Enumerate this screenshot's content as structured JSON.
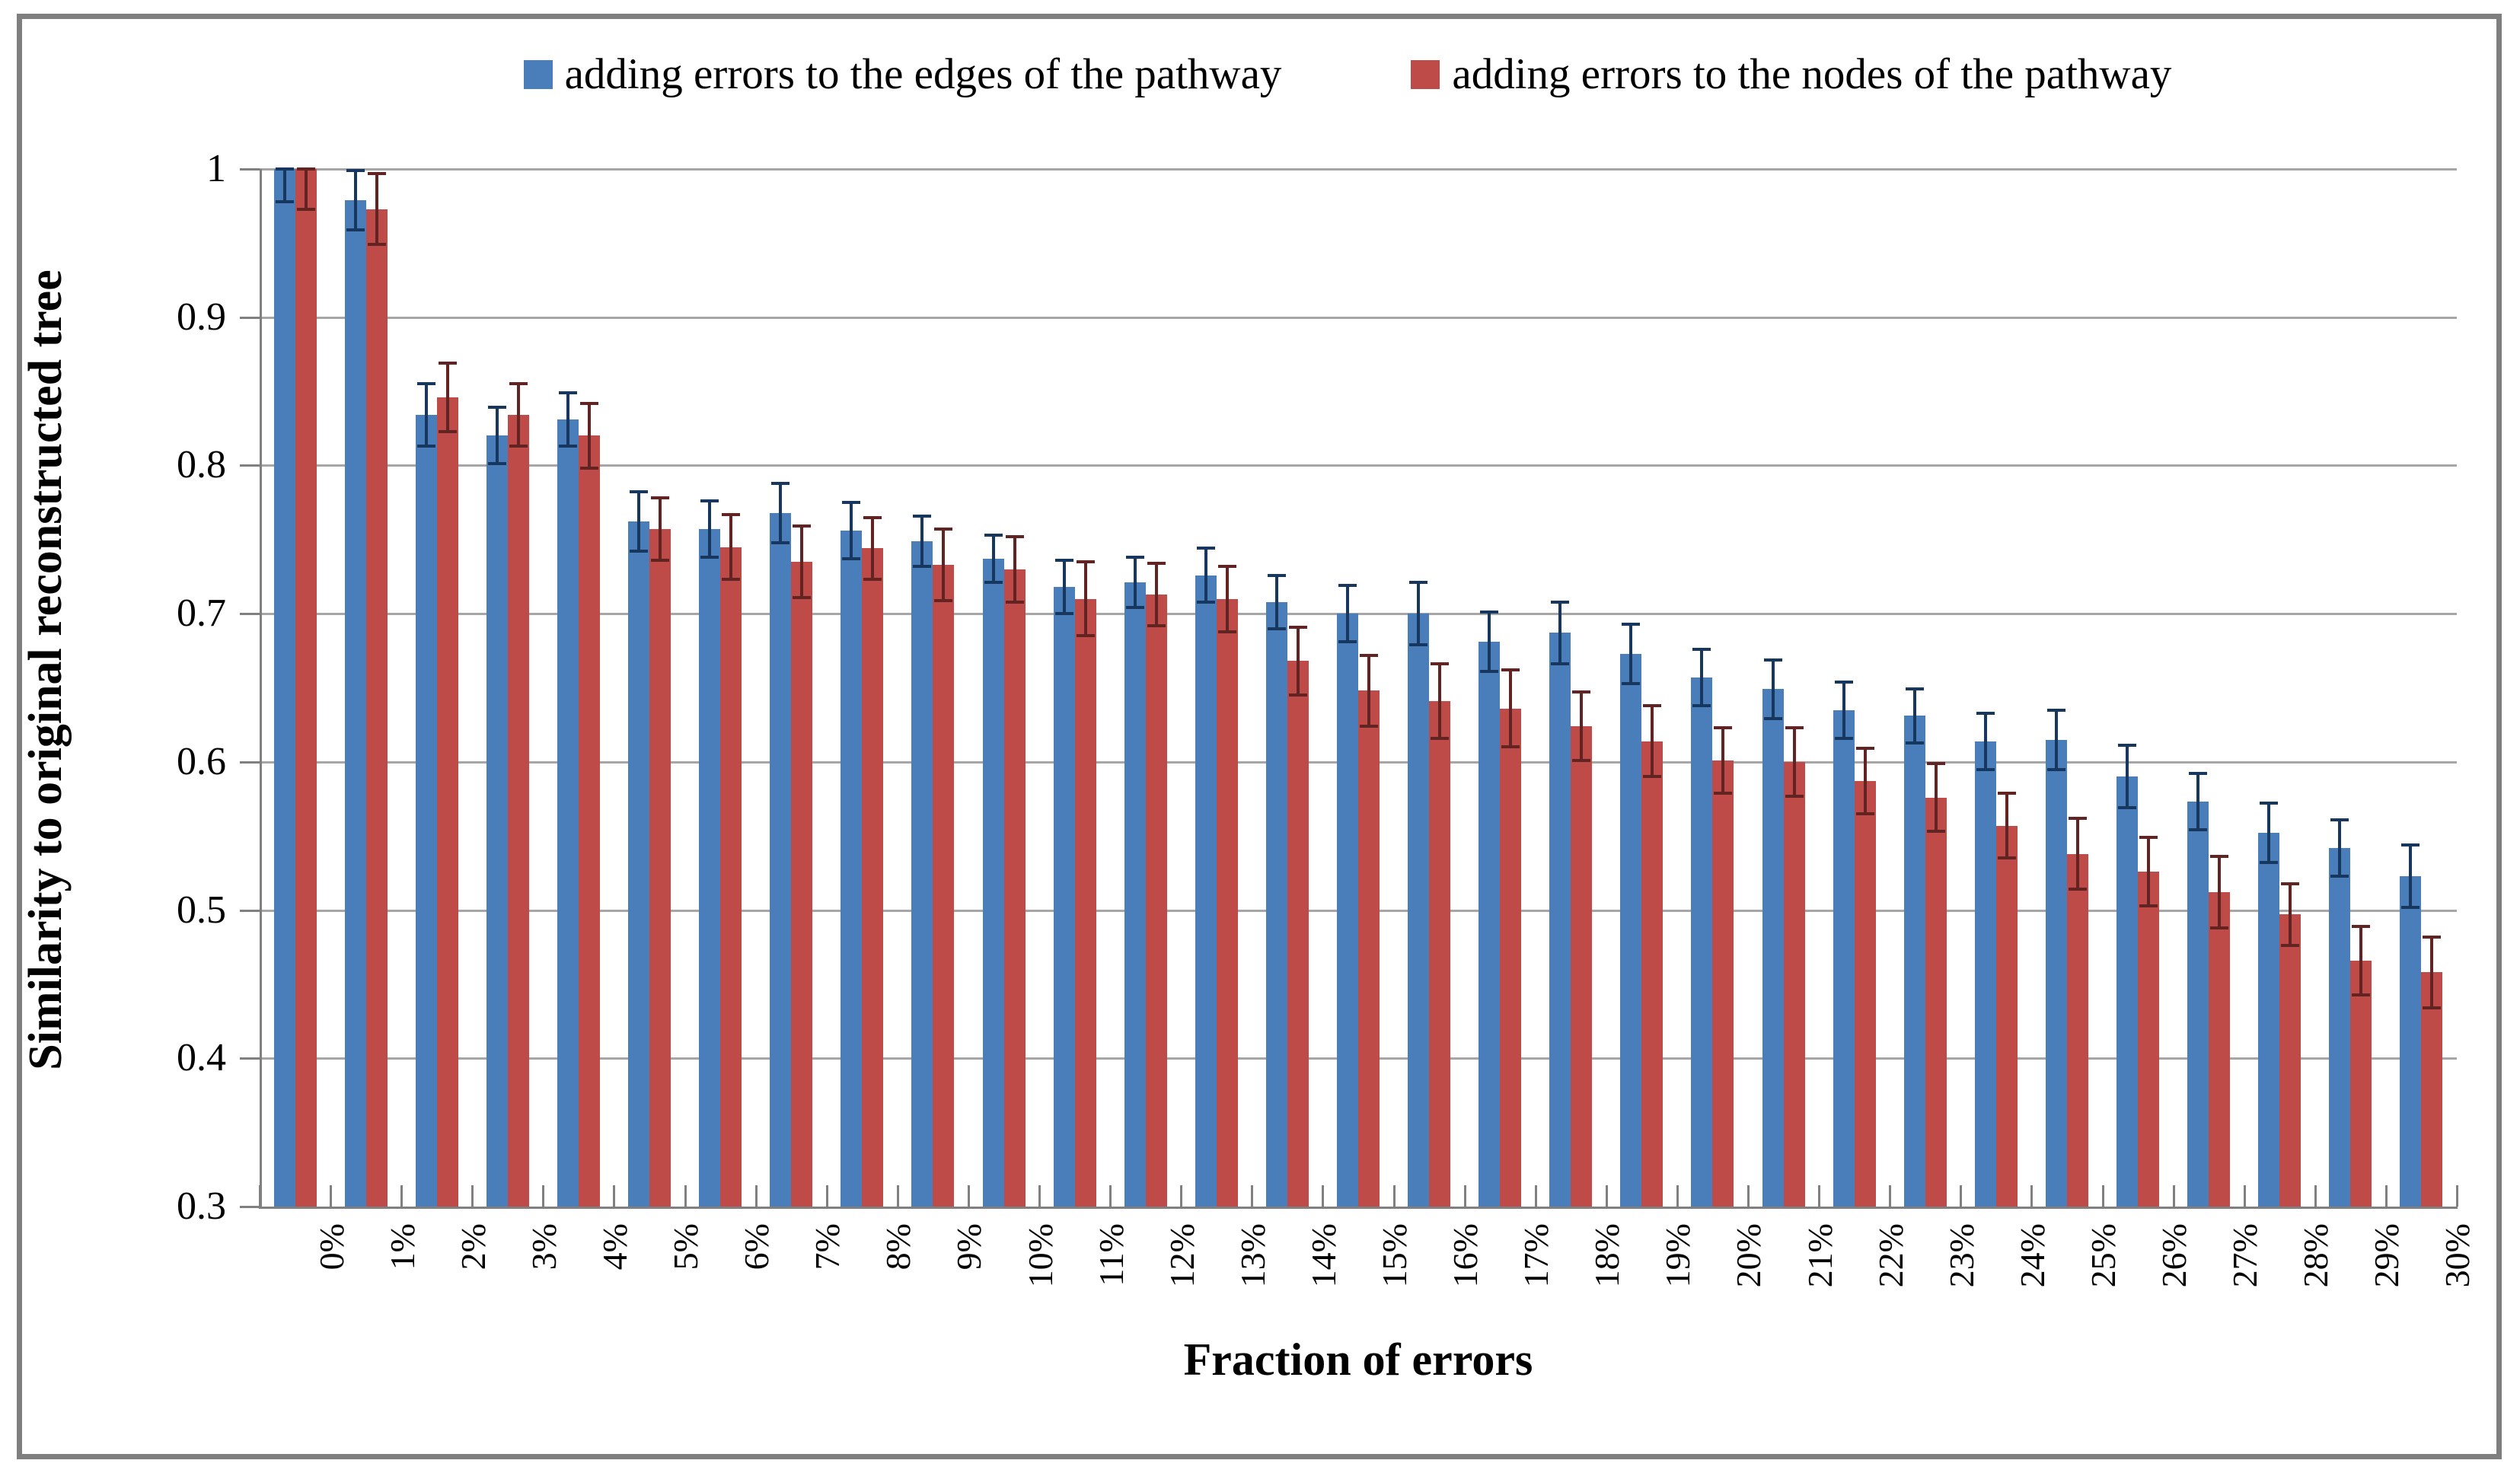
{
  "legend": {
    "items": [
      {
        "label": "adding errors to the edges of the pathway",
        "color": "#4A7EBB"
      },
      {
        "label": "adding errors to the nodes of the pathway",
        "color": "#BE4B48"
      }
    ]
  },
  "axes": {
    "x_title": "Fraction of errors",
    "y_title": "Similarity to original reconstructed tree"
  },
  "chart_data": {
    "type": "bar",
    "title": "",
    "xlabel": "Fraction of errors",
    "ylabel": "Similarity to original reconstructed tree",
    "categories": [
      "0%",
      "1%",
      "2%",
      "3%",
      "4%",
      "5%",
      "6%",
      "7%",
      "8%",
      "9%",
      "10%",
      "11%",
      "12%",
      "13%",
      "14%",
      "15%",
      "16%",
      "17%",
      "18%",
      "19%",
      "20%",
      "21%",
      "22%",
      "23%",
      "24%",
      "25%",
      "26%",
      "27%",
      "28%",
      "29%",
      "30%"
    ],
    "ylim": [
      0.3,
      1.0
    ],
    "ytick_interval": 0.1,
    "ytick_labels_top_to_bottom": [
      "1",
      "0.9",
      "0.8",
      "0.7",
      "0.6",
      "0.5",
      "0.4",
      "0.3"
    ],
    "grid": true,
    "error_bars": "plus-minus, clipped at 1.0",
    "legend_position": "top",
    "series": [
      {
        "name": "adding errors to the edges of the pathway",
        "color": "#4A7EBB",
        "error_color": "#17375E",
        "values": [
          1.0,
          0.979,
          0.834,
          0.82,
          0.831,
          0.762,
          0.757,
          0.768,
          0.756,
          0.749,
          0.737,
          0.718,
          0.721,
          0.726,
          0.708,
          0.7,
          0.7,
          0.681,
          0.687,
          0.673,
          0.657,
          0.649,
          0.635,
          0.631,
          0.614,
          0.615,
          0.59,
          0.573,
          0.552,
          0.542,
          0.523
        ],
        "errors": [
          0.022,
          0.02,
          0.021,
          0.019,
          0.018,
          0.02,
          0.019,
          0.02,
          0.019,
          0.017,
          0.016,
          0.018,
          0.017,
          0.018,
          0.018,
          0.019,
          0.021,
          0.02,
          0.021,
          0.02,
          0.019,
          0.02,
          0.019,
          0.018,
          0.019,
          0.02,
          0.021,
          0.019,
          0.02,
          0.019,
          0.021
        ]
      },
      {
        "name": "adding errors to the nodes of the pathway",
        "color": "#BE4B48",
        "error_color": "#622423",
        "values": [
          1.0,
          0.973,
          0.846,
          0.834,
          0.82,
          0.757,
          0.745,
          0.735,
          0.744,
          0.733,
          0.73,
          0.71,
          0.713,
          0.71,
          0.668,
          0.648,
          0.641,
          0.636,
          0.624,
          0.614,
          0.601,
          0.6,
          0.587,
          0.576,
          0.557,
          0.538,
          0.526,
          0.512,
          0.497,
          0.466,
          0.458
        ],
        "errors": [
          0.027,
          0.024,
          0.023,
          0.021,
          0.022,
          0.021,
          0.022,
          0.024,
          0.021,
          0.024,
          0.022,
          0.025,
          0.021,
          0.022,
          0.023,
          0.024,
          0.025,
          0.026,
          0.023,
          0.024,
          0.022,
          0.023,
          0.022,
          0.023,
          0.022,
          0.024,
          0.023,
          0.024,
          0.021,
          0.023,
          0.024
        ]
      }
    ],
    "colors": {
      "gridline": "#A6A6A6",
      "axis": "#808080",
      "background": "#FFFFFF",
      "frame_border": "#7F7F7F"
    }
  }
}
